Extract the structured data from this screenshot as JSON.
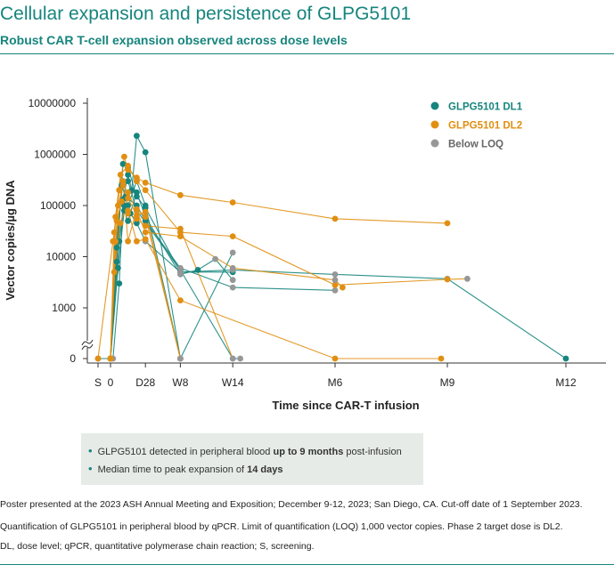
{
  "header": {
    "title": "Cellular expansion and persistence of GLPG5101",
    "subtitle": "Robust CAR T-cell expansion observed across dose levels"
  },
  "notes": [
    {
      "pre": "GLPG5101 detected in peripheral blood ",
      "bold": "up to 9 months",
      "post": " post-infusion"
    },
    {
      "pre": "Median time to peak expansion of ",
      "bold": "14 days",
      "post": ""
    }
  ],
  "footnotes": [
    "Poster presented at the 2023 ASH Annual Meeting and Exposition; December 9-12, 2023; San Diego, CA. Cut-off date of 1 September 2023.",
    "Quantification of GLPG5101 in peripheral blood by qPCR. Limit of quantification (LOQ) 1,000 vector copies. Phase 2 target dose is DL2.",
    "DL, dose level; qPCR, quantitative polymerase chain reaction; S, screening."
  ],
  "colors": {
    "brand": "#16857d",
    "dl1": "#16857d",
    "dl2": "#e08f12",
    "loq": "#979797",
    "axis": "#333333"
  },
  "chart_data": {
    "type": "line",
    "title": "Cellular expansion and persistence of GLPG5101",
    "xlabel": "Time since CAR-T infusion",
    "ylabel": "Vector copies/µg DNA",
    "yscale": "log",
    "ylim": [
      1000,
      10000000
    ],
    "xlim": [
      -14,
      370
    ],
    "x_ticks": [
      {
        "label": "S",
        "day": -10
      },
      {
        "label": "0",
        "day": 0
      },
      {
        "label": "D28",
        "day": 28
      },
      {
        "label": "W8",
        "day": 56
      },
      {
        "label": "W14",
        "day": 98
      },
      {
        "label": "M6",
        "day": 180
      },
      {
        "label": "M9",
        "day": 270
      },
      {
        "label": "M12",
        "day": 365
      }
    ],
    "y_ticks": [
      {
        "label": "10000000",
        "value": 10000000
      },
      {
        "label": "1000000",
        "value": 1000000
      },
      {
        "label": "100000",
        "value": 100000
      },
      {
        "label": "10000",
        "value": 10000
      },
      {
        "label": "1000",
        "value": 1000
      },
      {
        "label": "0",
        "value": 0
      }
    ],
    "axis_break": true,
    "legend": [
      {
        "name": "GLPG5101 DL1",
        "color": "#16857d"
      },
      {
        "name": "GLPG5101 DL2",
        "color": "#e08f12"
      },
      {
        "name": "Below LOQ",
        "color": "#979797"
      }
    ],
    "series": [
      {
        "name": "GLPG5101 DL1",
        "color": "#16857d",
        "lines": [
          [
            [
              -10,
              0,
              "loq"
            ],
            [
              2,
              0,
              "loq"
            ],
            [
              7,
              3000
            ],
            [
              10,
              130000
            ],
            [
              14,
              400000
            ],
            [
              17,
              200000
            ],
            [
              21,
              2300000
            ],
            [
              28,
              1100000
            ],
            [
              56,
              0,
              "loq"
            ]
          ],
          [
            [
              0,
              0,
              "loq"
            ],
            [
              5,
              8000
            ],
            [
              10,
              650000
            ],
            [
              14,
              550000
            ],
            [
              21,
              150000
            ],
            [
              28,
              90000
            ],
            [
              56,
              5000
            ],
            [
              98,
              5000
            ]
          ],
          [
            [
              0,
              0,
              "loq"
            ],
            [
              5,
              20000
            ],
            [
              10,
              300000
            ],
            [
              14,
              300000
            ],
            [
              21,
              80000
            ],
            [
              56,
              5500
            ],
            [
              98,
              0,
              "loq"
            ],
            [
              104,
              0,
              "loq"
            ]
          ],
          [
            [
              0,
              0,
              "loq"
            ],
            [
              6,
              6000
            ],
            [
              11,
              80000
            ],
            [
              14,
              50000
            ],
            [
              21,
              180000
            ],
            [
              28,
              60000
            ],
            [
              56,
              4500,
              "loq"
            ],
            [
              70,
              5500
            ],
            [
              84,
              9000,
              "loq"
            ],
            [
              98,
              3500,
              "loq"
            ]
          ],
          [
            [
              0,
              0,
              "loq"
            ],
            [
              4,
              5000
            ],
            [
              9,
              250000
            ],
            [
              14,
              100000
            ],
            [
              21,
              300000
            ],
            [
              28,
              100000
            ],
            [
              56,
              0,
              "loq"
            ],
            [
              98,
              12000,
              "loq"
            ]
          ],
          [
            [
              0,
              0,
              "loq"
            ],
            [
              5,
              15000
            ],
            [
              11,
              100000
            ],
            [
              16,
              70000
            ],
            [
              21,
              45000
            ],
            [
              28,
              20000,
              "loq"
            ],
            [
              56,
              5000,
              "loq"
            ],
            [
              98,
              5500,
              "loq"
            ],
            [
              180,
              4500,
              "loq"
            ],
            [
              270,
              3700,
              "loq"
            ],
            [
              365,
              0
            ]
          ],
          [
            [
              0,
              0,
              "loq"
            ],
            [
              7,
              20000
            ],
            [
              12,
              150000
            ],
            [
              21,
              100000
            ],
            [
              28,
              50000
            ],
            [
              56,
              6000,
              "loq"
            ],
            [
              98,
              2500,
              "loq"
            ],
            [
              180,
              2200,
              "loq"
            ]
          ]
        ]
      },
      {
        "name": "GLPG5101 DL2",
        "color": "#e08f12",
        "lines": [
          [
            [
              -10,
              0
            ],
            [
              2,
              20000
            ],
            [
              7,
              200000
            ],
            [
              11,
              900000
            ],
            [
              14,
              500000
            ],
            [
              21,
              350000
            ],
            [
              28,
              280000
            ],
            [
              56,
              160000
            ],
            [
              98,
              115000
            ],
            [
              180,
              55000
            ],
            [
              270,
              45000
            ]
          ],
          [
            [
              0,
              0
            ],
            [
              4,
              60000
            ],
            [
              8,
              400000
            ],
            [
              14,
              600000
            ],
            [
              21,
              300000
            ],
            [
              28,
              200000
            ],
            [
              56,
              30000
            ],
            [
              98,
              25000
            ],
            [
              180,
              2800
            ],
            [
              270,
              3600
            ],
            [
              286,
              3700,
              "loq"
            ]
          ],
          [
            [
              0,
              0
            ],
            [
              3,
              30000
            ],
            [
              7,
              200000
            ],
            [
              14,
              80000
            ],
            [
              21,
              20000
            ],
            [
              28,
              22000
            ],
            [
              56,
              1400
            ],
            [
              180,
              0
            ],
            [
              265,
              0
            ]
          ],
          [
            [
              0,
              0
            ],
            [
              5,
              50000
            ],
            [
              9,
              120000
            ],
            [
              14,
              70000
            ],
            [
              21,
              55000
            ],
            [
              28,
              40000
            ],
            [
              56,
              35000
            ],
            [
              98,
              0,
              "loq"
            ]
          ],
          [
            [
              0,
              0
            ],
            [
              4,
              20000
            ],
            [
              10,
              300000
            ],
            [
              14,
              20000
            ],
            [
              21,
              85000
            ],
            [
              28,
              60000
            ],
            [
              56,
              0
            ]
          ],
          [
            [
              0,
              0
            ],
            [
              6,
              100000
            ],
            [
              10,
              250000
            ],
            [
              14,
              180000
            ],
            [
              21,
              80000
            ],
            [
              28,
              30000
            ],
            [
              56,
              25000
            ],
            [
              98,
              6000,
              "loq"
            ],
            [
              180,
              3500,
              "loq"
            ],
            [
              186,
              2500
            ]
          ],
          [
            [
              0,
              0
            ],
            [
              3,
              5000
            ],
            [
              8,
              45000
            ],
            [
              14,
              140000
            ],
            [
              21,
              65000
            ],
            [
              28,
              75000
            ],
            [
              56,
              0,
              "loq"
            ]
          ]
        ]
      }
    ]
  }
}
